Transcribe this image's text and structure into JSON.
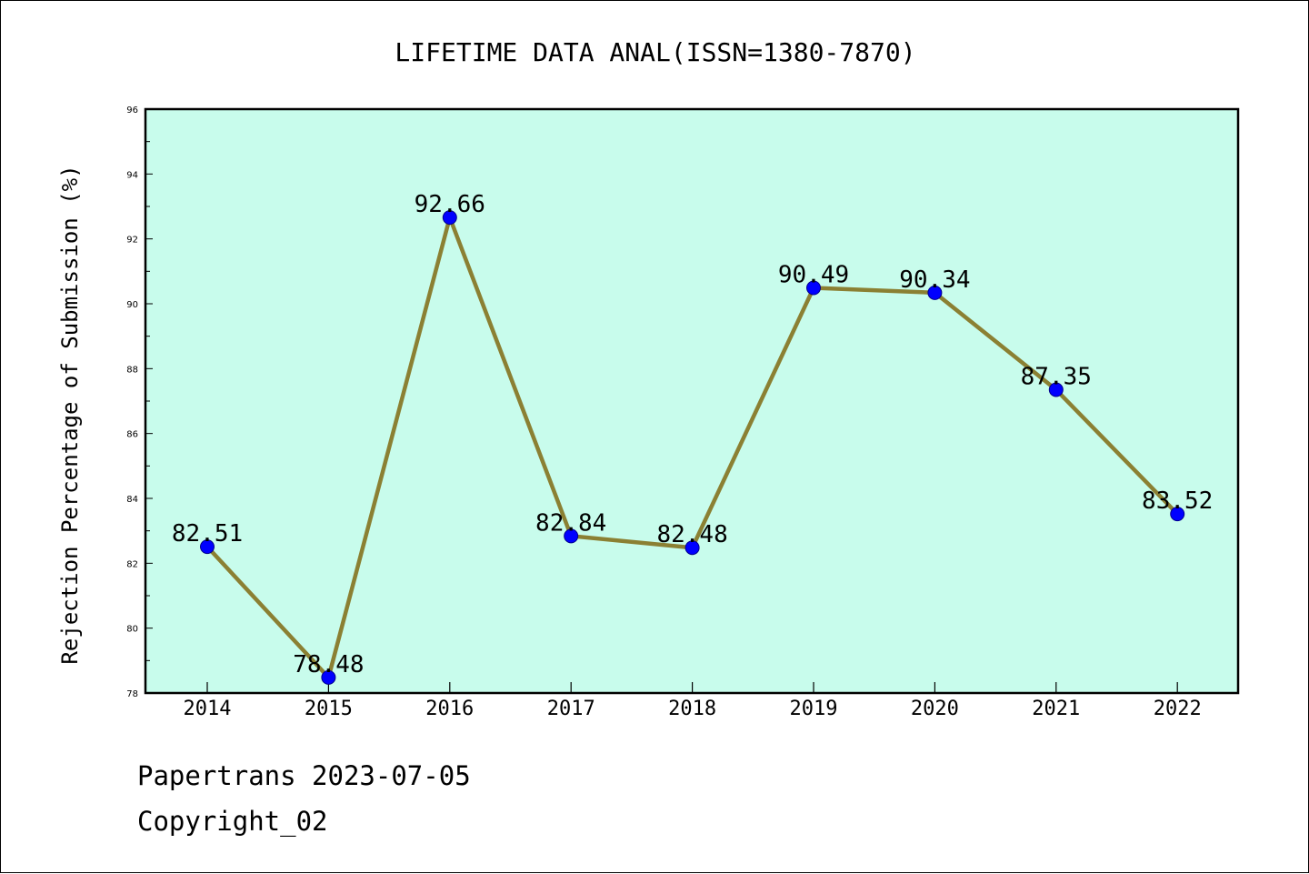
{
  "chart_data": {
    "type": "line",
    "title": "LIFETIME DATA ANAL(ISSN=1380-7870)",
    "xlabel": "",
    "ylabel": "Rejection Percentage of Submission (%)",
    "x": [
      "2014",
      "2015",
      "2016",
      "2017",
      "2018",
      "2019",
      "2020",
      "2021",
      "2022"
    ],
    "series": [
      {
        "values": [
          82.51,
          78.48,
          92.66,
          82.84,
          82.48,
          90.49,
          90.34,
          87.35,
          83.52
        ],
        "data_labels": [
          "82.51",
          "78.48",
          "92.66",
          "82.84",
          "82.48",
          "90.49",
          "90.34",
          "87.35",
          "83.52"
        ]
      }
    ],
    "ylim": [
      78,
      96
    ],
    "y_ticks": [
      "78",
      "80",
      "82",
      "84",
      "86",
      "88",
      "90",
      "92",
      "94",
      "96"
    ],
    "grid": false,
    "colors": {
      "plot_background": "#c8fcec",
      "line": "#8b8033",
      "marker": "#0000ff"
    }
  },
  "footer": {
    "line1": "Papertrans 2023-07-05",
    "line2": "Copyright_02"
  }
}
